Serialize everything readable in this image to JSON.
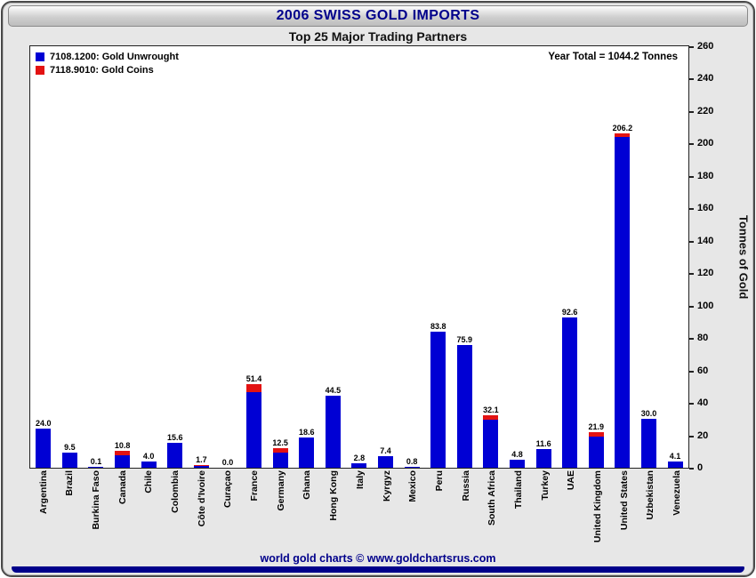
{
  "window": {
    "title": "2006 SWISS GOLD IMPORTS",
    "subtitle": "Top 25 Major Trading Partners",
    "footer": "world gold charts © www.goldchartsrus.com"
  },
  "annotation": "Year Total = 1044.2 Tonnes",
  "legend": [
    {
      "label": "7108.1200: Gold Unwrought",
      "color": "#0000d4"
    },
    {
      "label": "7118.9010: Gold Coins",
      "color": "#e31212"
    }
  ],
  "colors": {
    "title_text": "#00008B",
    "bar_blue": "#0000d4",
    "bar_red": "#e31212"
  },
  "chart_data": {
    "type": "bar",
    "stacked": true,
    "title": "2006 SWISS GOLD IMPORTS",
    "subtitle": "Top 25 Major Trading Partners",
    "xlabel": "",
    "ylabel": "Tonnes of Gold",
    "ylim": [
      0,
      260
    ],
    "ytick_step": 20,
    "grid": false,
    "legend_position": "top-left",
    "categories": [
      "Argentina",
      "Brazil",
      "Burkina Faso",
      "Canada",
      "Chile",
      "Colombia",
      "Côte d'Ivoire",
      "Curaçao",
      "France",
      "Germany",
      "Ghana",
      "Hong Kong",
      "Italy",
      "Kyrgyz",
      "Mexico",
      "Peru",
      "Russia",
      "South Africa",
      "Thailand",
      "Turkey",
      "UAE",
      "United Kingdom",
      "United States",
      "Uzbekistan",
      "Venezuela"
    ],
    "totals": [
      24.0,
      9.5,
      0.1,
      10.8,
      4.0,
      15.6,
      1.7,
      0.0,
      51.4,
      12.5,
      18.6,
      44.5,
      2.8,
      7.4,
      0.8,
      83.8,
      75.9,
      32.1,
      4.8,
      11.6,
      92.6,
      21.9,
      206.2,
      30.0,
      4.1
    ],
    "series": [
      {
        "name": "7108.1200: Gold Unwrought",
        "color": "#0000d4",
        "values": [
          24.0,
          9.5,
          0.1,
          7.8,
          4.0,
          15.6,
          0.9,
          0.0,
          46.4,
          9.5,
          18.6,
          44.5,
          2.8,
          7.4,
          0.8,
          83.8,
          75.9,
          29.6,
          4.8,
          11.6,
          92.6,
          19.4,
          204.2,
          30.0,
          4.1
        ]
      },
      {
        "name": "7118.9010: Gold Coins",
        "color": "#e31212",
        "values": [
          0,
          0,
          0,
          3.0,
          0,
          0,
          0.8,
          0,
          5.0,
          3.0,
          0,
          0,
          0,
          0,
          0,
          0,
          0,
          2.5,
          0,
          0,
          0,
          2.5,
          2.0,
          0,
          0
        ]
      }
    ]
  }
}
